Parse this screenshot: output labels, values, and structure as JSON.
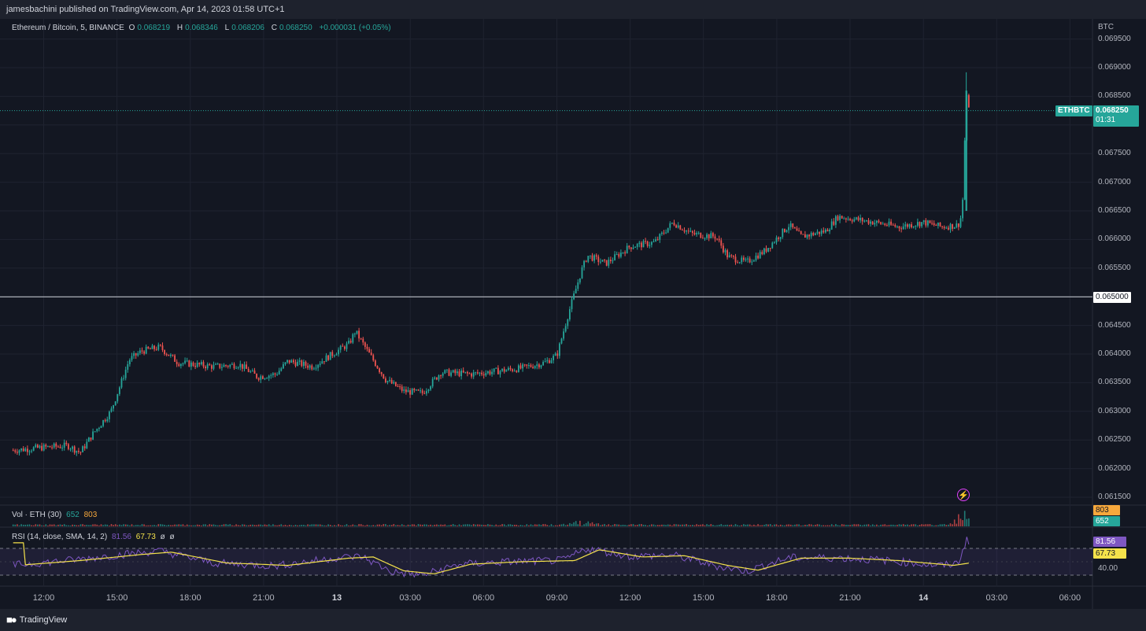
{
  "header": {
    "published": "jamesbachini published on TradingView.com, Apr 14, 2023 01:58 UTC+1"
  },
  "footer": {
    "brand": "TradingView"
  },
  "legend": {
    "symbol": "Ethereum / Bitcoin, 5, BINANCE",
    "o_label": "O",
    "o_value": "0.068219",
    "h_label": "H",
    "h_value": "0.068346",
    "l_label": "L",
    "l_value": "0.068206",
    "c_label": "C",
    "c_value": "0.068250",
    "change": "+0.000031 (+0.05%)"
  },
  "volume": {
    "label": "Vol · ETH (30)",
    "v1": "652",
    "v2": "803"
  },
  "rsi": {
    "label": "RSI (14, close, SMA, 14, 2)",
    "v1": "81.56",
    "v2": "67.73",
    "extra1": "ø",
    "extra2": "ø"
  },
  "price_axis": {
    "currency": "BTC",
    "ticks": [
      "0.069500",
      "0.069000",
      "0.068500",
      "0.068000",
      "0.067500",
      "0.067000",
      "0.066500",
      "0.066000",
      "0.065500",
      "0.065000",
      "0.064500",
      "0.064000",
      "0.063500",
      "0.063000",
      "0.062500",
      "0.062000",
      "0.061500"
    ],
    "last_symbol": "ETHBTC",
    "last_price": "0.068250",
    "countdown": "01:31",
    "hline_label": "0.065000",
    "vol_tags": [
      "803",
      "652"
    ],
    "rsi_tags": [
      "81.56",
      "67.73"
    ],
    "rsi_tick": "40.00"
  },
  "time_axis": {
    "ticks": [
      "12:00",
      "15:00",
      "18:00",
      "21:00",
      "13",
      "03:00",
      "06:00",
      "09:00",
      "12:00",
      "15:00",
      "18:00",
      "21:00",
      "14",
      "03:00",
      "06:00"
    ]
  },
  "colors": {
    "up": "#26a69a",
    "down": "#ef5350",
    "bg": "#131722",
    "rsi": "#7e57c2",
    "rsi_sma": "#f4e24b"
  },
  "chart_data": {
    "type": "candlestick",
    "symbol": "ETHBTC",
    "timeframe": "5",
    "ylim": [
      0.06145,
      0.06975
    ],
    "horizontal_line": 0.065,
    "last_price": 0.06825,
    "path": [
      {
        "t": "Apr 12 10:45",
        "p": 0.06232
      },
      {
        "t": "Apr 12 12:00",
        "p": 0.06237
      },
      {
        "t": "Apr 12 13:00",
        "p": 0.0624
      },
      {
        "t": "Apr 12 13:30",
        "p": 0.06228
      },
      {
        "t": "Apr 12 14:00",
        "p": 0.0626
      },
      {
        "t": "Apr 12 14:45",
        "p": 0.063
      },
      {
        "t": "Apr 12 15:30",
        "p": 0.0639
      },
      {
        "t": "Apr 12 16:00",
        "p": 0.06405
      },
      {
        "t": "Apr 12 16:45",
        "p": 0.06412
      },
      {
        "t": "Apr 12 17:30",
        "p": 0.06385
      },
      {
        "t": "Apr 12 19:00",
        "p": 0.06378
      },
      {
        "t": "Apr 12 20:00",
        "p": 0.06382
      },
      {
        "t": "Apr 12 20:45",
        "p": 0.0636
      },
      {
        "t": "Apr 12 21:30",
        "p": 0.06365
      },
      {
        "t": "Apr 12 22:00",
        "p": 0.06388
      },
      {
        "t": "Apr 12 23:00",
        "p": 0.06378
      },
      {
        "t": "Apr 13 00:00",
        "p": 0.06405
      },
      {
        "t": "Apr 13 00:30",
        "p": 0.06418
      },
      {
        "t": "Apr 13 00:45",
        "p": 0.0644
      },
      {
        "t": "Apr 13 01:15",
        "p": 0.06405
      },
      {
        "t": "Apr 13 02:00",
        "p": 0.06355
      },
      {
        "t": "Apr 13 02:45",
        "p": 0.06335
      },
      {
        "t": "Apr 13 03:30",
        "p": 0.06332
      },
      {
        "t": "Apr 13 04:15",
        "p": 0.06368
      },
      {
        "t": "Apr 13 05:30",
        "p": 0.06365
      },
      {
        "t": "Apr 13 06:30",
        "p": 0.0637
      },
      {
        "t": "Apr 13 07:30",
        "p": 0.06375
      },
      {
        "t": "Apr 13 08:30",
        "p": 0.06385
      },
      {
        "t": "Apr 13 09:00",
        "p": 0.06398
      },
      {
        "t": "Apr 13 09:30",
        "p": 0.06475
      },
      {
        "t": "Apr 13 10:00",
        "p": 0.06545
      },
      {
        "t": "Apr 13 10:15",
        "p": 0.06572
      },
      {
        "t": "Apr 13 11:00",
        "p": 0.06558
      },
      {
        "t": "Apr 13 12:00",
        "p": 0.06588
      },
      {
        "t": "Apr 13 13:00",
        "p": 0.06595
      },
      {
        "t": "Apr 13 13:45",
        "p": 0.0663
      },
      {
        "t": "Apr 13 14:30",
        "p": 0.0661
      },
      {
        "t": "Apr 13 15:30",
        "p": 0.06605
      },
      {
        "t": "Apr 13 16:00",
        "p": 0.0657
      },
      {
        "t": "Apr 13 16:45",
        "p": 0.0656
      },
      {
        "t": "Apr 13 17:30",
        "p": 0.0658
      },
      {
        "t": "Apr 13 18:30",
        "p": 0.06625
      },
      {
        "t": "Apr 13 19:00",
        "p": 0.06605
      },
      {
        "t": "Apr 13 20:00",
        "p": 0.06615
      },
      {
        "t": "Apr 13 20:30",
        "p": 0.0664
      },
      {
        "t": "Apr 13 22:00",
        "p": 0.0663
      },
      {
        "t": "Apr 13 23:00",
        "p": 0.06622
      },
      {
        "t": "Apr 14 00:00",
        "p": 0.0663
      },
      {
        "t": "Apr 14 00:45",
        "p": 0.06622
      },
      {
        "t": "Apr 14 01:25",
        "p": 0.06625
      },
      {
        "t": "Apr 14 01:35",
        "p": 0.06645
      },
      {
        "t": "Apr 14 01:45",
        "p": 0.0685
      },
      {
        "t": "Apr 14 01:55",
        "p": 0.06825
      }
    ],
    "volume_spikes": [
      {
        "t": "Apr 13 10:00",
        "v": 0.35
      },
      {
        "t": "Apr 14 01:45",
        "v": 1.0
      }
    ],
    "rsi_path": [
      {
        "t": "Apr 12 10:45",
        "v": 45
      },
      {
        "t": "Apr 12 13:00",
        "v": 52
      },
      {
        "t": "Apr 12 15:30",
        "v": 62
      },
      {
        "t": "Apr 12 16:45",
        "v": 66
      },
      {
        "t": "Apr 12 19:00",
        "v": 48
      },
      {
        "t": "Apr 12 21:30",
        "v": 44
      },
      {
        "t": "Apr 13 00:00",
        "v": 56
      },
      {
        "t": "Apr 13 01:00",
        "v": 58
      },
      {
        "t": "Apr 13 02:15",
        "v": 35
      },
      {
        "t": "Apr 13 03:30",
        "v": 30
      },
      {
        "t": "Apr 13 05:00",
        "v": 46
      },
      {
        "t": "Apr 13 07:00",
        "v": 50
      },
      {
        "t": "Apr 13 09:15",
        "v": 52
      },
      {
        "t": "Apr 13 10:15",
        "v": 70
      },
      {
        "t": "Apr 13 12:00",
        "v": 58
      },
      {
        "t": "Apr 13 13:45",
        "v": 60
      },
      {
        "t": "Apr 13 15:30",
        "v": 44
      },
      {
        "t": "Apr 13 16:45",
        "v": 36
      },
      {
        "t": "Apr 13 18:30",
        "v": 56
      },
      {
        "t": "Apr 13 20:30",
        "v": 56
      },
      {
        "t": "Apr 13 22:30",
        "v": 52
      },
      {
        "t": "Apr 14 00:45",
        "v": 44
      },
      {
        "t": "Apr 14 01:25",
        "v": 48
      },
      {
        "t": "Apr 14 01:45",
        "v": 82
      },
      {
        "t": "Apr 14 01:55",
        "v": 81.56
      }
    ]
  }
}
